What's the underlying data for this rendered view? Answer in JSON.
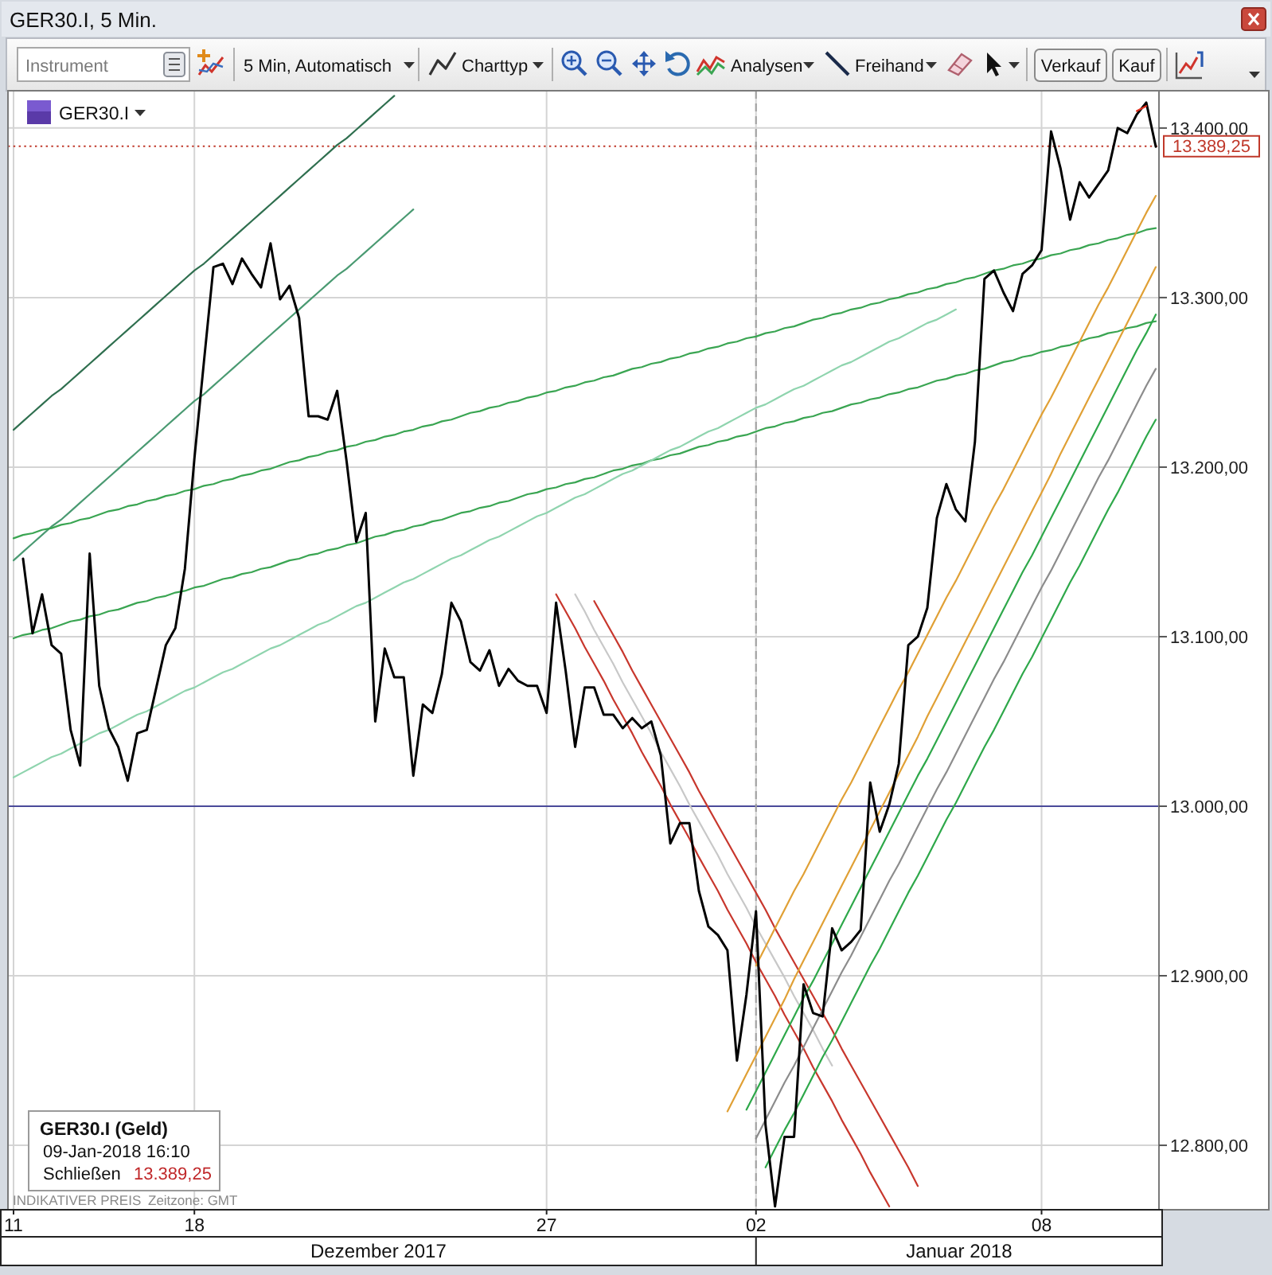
{
  "chart_data": {
    "type": "line",
    "title": "GER30.I, 5 Min.",
    "annotations": [
      "Instrument",
      "5 Min, Automatisch",
      "Charttyp",
      "Analysen",
      "Freihand",
      "Verkauf",
      "Kauf",
      "GER30.I",
      "GER30.I (Geld)",
      "09-Jan-2018 16:10",
      "Schließen",
      "13.389,25",
      "INDIKATIVER PREIS",
      "Zeitzone: GMT",
      "Dezember 2017",
      "Januar 2018"
    ],
    "categories": [
      "11",
      null,
      null,
      null,
      null,
      null,
      null,
      null,
      null,
      null,
      null,
      null,
      null,
      null,
      null,
      null,
      null,
      null,
      null,
      "18",
      null,
      null,
      null,
      null,
      null,
      null,
      null,
      null,
      null,
      null,
      null,
      null,
      null,
      null,
      null,
      null,
      null,
      null,
      null,
      null,
      null,
      null,
      null,
      null,
      null,
      null,
      null,
      null,
      null,
      null,
      null,
      null,
      null,
      null,
      null,
      null,
      "27",
      null,
      null,
      null,
      null,
      null,
      null,
      null,
      null,
      null,
      null,
      null,
      null,
      null,
      null,
      null,
      null,
      null,
      null,
      null,
      null,
      null,
      "02",
      null,
      null,
      null,
      null,
      null,
      null,
      null,
      null,
      null,
      null,
      null,
      null,
      null,
      null,
      null,
      null,
      null,
      null,
      null,
      null,
      null,
      null,
      null,
      null,
      null,
      null,
      null,
      null,
      null,
      "08",
      null,
      null,
      null,
      null,
      null,
      null,
      null,
      null,
      null,
      null,
      null,
      null
    ],
    "ylim": [
      12762,
      13422
    ],
    "yticks": [
      {
        "value": 12800,
        "label": "12.800,00"
      },
      {
        "value": 12900,
        "label": "12.900,00"
      },
      {
        "value": 13000,
        "label": "13.000,00"
      },
      {
        "value": 13100,
        "label": "13.100,00"
      },
      {
        "value": 13200,
        "label": "13.200,00"
      },
      {
        "value": 13300,
        "label": "13.300,00"
      },
      {
        "value": 13400,
        "label": "13.400,00"
      }
    ],
    "grid": true,
    "ref_lines": [
      {
        "axis": "y",
        "value": 13000,
        "color": "#4a4a9a"
      },
      {
        "axis": "y",
        "value": 13389.25,
        "label": "13.389,25",
        "color": "#c0392b",
        "line_style": "dotted"
      },
      {
        "axis": "x",
        "value": "02",
        "color": "#a0a0a0",
        "line_style": "dashed"
      }
    ],
    "series": [
      {
        "color": "#2f6f4f",
        "values": [
          13222,
          13227,
          13232,
          13237,
          13242,
          13246,
          13251,
          13256,
          13261,
          13266,
          13271,
          13276,
          13281,
          13286,
          13291,
          13296,
          13301,
          13306,
          13311,
          13316,
          13320,
          13325,
          13330,
          13335,
          13340,
          13345,
          13350,
          13355,
          13360,
          13365,
          13370,
          13375,
          13380,
          13385,
          13390,
          13394,
          13399,
          13404,
          13409,
          13414,
          13419,
          null,
          null,
          null,
          null,
          null,
          null,
          null,
          null,
          null,
          null,
          null,
          null,
          null,
          null,
          null,
          null,
          null,
          null,
          null,
          null,
          null,
          null,
          null,
          null,
          null,
          null,
          null,
          null,
          null,
          null,
          null,
          null,
          null,
          null,
          null,
          null,
          null,
          null,
          null,
          null,
          null,
          null,
          null,
          null,
          null,
          null,
          null,
          null,
          null,
          null,
          null,
          null,
          null,
          null,
          null,
          null,
          null,
          null,
          null,
          null,
          null,
          null,
          null,
          null,
          null,
          null,
          null,
          null,
          null,
          null,
          null,
          null,
          null,
          null,
          null,
          null,
          null,
          null,
          null,
          null
        ]
      },
      {
        "color": "#4a9a72",
        "values": [
          13145,
          13150,
          13155,
          13160,
          13165,
          13169,
          13174,
          13179,
          13184,
          13189,
          13194,
          13199,
          13204,
          13209,
          13214,
          13219,
          13224,
          13229,
          13234,
          13239,
          13243,
          13248,
          13253,
          13258,
          13263,
          13268,
          13273,
          13278,
          13283,
          13288,
          13293,
          13298,
          13303,
          13308,
          13313,
          13317,
          13322,
          13327,
          13332,
          13337,
          13342,
          13347,
          13352,
          null,
          null,
          null,
          null,
          null,
          null,
          null,
          null,
          null,
          null,
          null,
          null,
          null,
          null,
          null,
          null,
          null,
          null,
          null,
          null,
          null,
          null,
          null,
          null,
          null,
          null,
          null,
          null,
          null,
          null,
          null,
          null,
          null,
          null,
          null,
          null,
          null,
          null,
          null,
          null,
          null,
          null,
          null,
          null,
          null,
          null,
          null,
          null,
          null,
          null,
          null,
          null,
          null,
          null,
          null,
          null,
          null,
          null,
          null,
          null,
          null,
          null,
          null,
          null,
          null,
          null,
          null,
          null,
          null,
          null,
          null,
          null,
          null,
          null,
          null,
          null,
          null,
          null
        ]
      },
      {
        "color": "#3aa552",
        "values": [
          13158,
          13160,
          13161,
          13163,
          13164,
          13166,
          13167,
          13169,
          13170,
          13172,
          13174,
          13175,
          13177,
          13178,
          13180,
          13181,
          13183,
          13184,
          13186,
          13187,
          13189,
          13190,
          13192,
          13193,
          13195,
          13196,
          13198,
          13199,
          13201,
          13203,
          13204,
          13206,
          13207,
          13209,
          13210,
          13212,
          13213,
          13215,
          13216,
          13218,
          13219,
          13221,
          13222,
          13224,
          13225,
          13227,
          13228,
          13230,
          13232,
          13233,
          13235,
          13236,
          13238,
          13239,
          13241,
          13242,
          13244,
          13245,
          13247,
          13248,
          13250,
          13251,
          13253,
          13254,
          13256,
          13258,
          13259,
          13261,
          13262,
          13264,
          13265,
          13267,
          13268,
          13270,
          13271,
          13273,
          13274,
          13276,
          13277,
          13279,
          13280,
          13282,
          13283,
          13285,
          13287,
          13288,
          13290,
          13291,
          13293,
          13294,
          13296,
          13297,
          13299,
          13300,
          13302,
          13303,
          13305,
          13306,
          13308,
          13309,
          13311,
          13312,
          13314,
          13316,
          13317,
          13319,
          13320,
          13322,
          13323,
          13325,
          13326,
          13328,
          13329,
          13331,
          13332,
          13334,
          13335,
          13337,
          13338,
          13340,
          13341
        ]
      },
      {
        "color": "#3aa552",
        "values": [
          13099,
          13101,
          13102,
          13104,
          13105,
          13107,
          13109,
          13110,
          13112,
          13113,
          13115,
          13116,
          13118,
          13120,
          13121,
          13123,
          13124,
          13126,
          13127,
          13129,
          13130,
          13132,
          13134,
          13135,
          13137,
          13138,
          13140,
          13141,
          13143,
          13145,
          13146,
          13148,
          13149,
          13151,
          13152,
          13154,
          13155,
          13157,
          13159,
          13160,
          13162,
          13163,
          13165,
          13166,
          13168,
          13169,
          13171,
          13173,
          13174,
          13176,
          13177,
          13179,
          13180,
          13182,
          13184,
          13185,
          13187,
          13188,
          13190,
          13191,
          13193,
          13194,
          13196,
          13198,
          13199,
          13201,
          13202,
          13204,
          13205,
          13207,
          13208,
          13210,
          13212,
          13213,
          13215,
          13216,
          13218,
          13219,
          13221,
          13223,
          13224,
          13226,
          13227,
          13229,
          13230,
          13232,
          13233,
          13235,
          13237,
          13238,
          13240,
          13241,
          13243,
          13244,
          13246,
          13247,
          13249,
          13251,
          13252,
          13254,
          13255,
          13257,
          13258,
          13260,
          13262,
          13263,
          13265,
          13266,
          13268,
          13269,
          13271,
          13272,
          13274,
          13276,
          13277,
          13279,
          13280,
          13282,
          13283,
          13285,
          13286
        ]
      },
      {
        "color": "#8fd4ae",
        "values": [
          13017,
          13020,
          13023,
          13026,
          13029,
          13031,
          13034,
          13037,
          13040,
          13043,
          13045,
          13048,
          13051,
          13054,
          13056,
          13059,
          13062,
          13065,
          13068,
          13070,
          13073,
          13076,
          13079,
          13081,
          13084,
          13087,
          13090,
          13093,
          13095,
          13098,
          13101,
          13104,
          13107,
          13109,
          13112,
          13115,
          13118,
          13120,
          13123,
          13126,
          13129,
          13132,
          13134,
          13137,
          13140,
          13143,
          13146,
          13148,
          13151,
          13154,
          13157,
          13159,
          13162,
          13165,
          13168,
          13171,
          13173,
          13176,
          13179,
          13182,
          13184,
          13187,
          13190,
          13193,
          13196,
          13198,
          13201,
          13204,
          13207,
          13210,
          13212,
          13215,
          13218,
          13221,
          13223,
          13226,
          13229,
          13232,
          13235,
          13237,
          13240,
          13243,
          13246,
          13248,
          13251,
          13254,
          13257,
          13260,
          13262,
          13265,
          13268,
          13271,
          13274,
          13276,
          13279,
          13282,
          13285,
          13287,
          13290,
          13293,
          null,
          null,
          null,
          null,
          null,
          null,
          null,
          null,
          null,
          null,
          null,
          null,
          null,
          null,
          null,
          null,
          null,
          null,
          null,
          null,
          null
        ]
      },
      {
        "color": "#c8372d",
        "values": [
          null,
          null,
          null,
          null,
          null,
          null,
          null,
          null,
          null,
          null,
          null,
          null,
          null,
          null,
          null,
          null,
          null,
          null,
          null,
          null,
          null,
          null,
          null,
          null,
          null,
          null,
          null,
          null,
          null,
          null,
          null,
          null,
          null,
          null,
          null,
          null,
          null,
          null,
          null,
          null,
          null,
          null,
          null,
          null,
          null,
          null,
          null,
          null,
          null,
          null,
          null,
          null,
          null,
          null,
          null,
          null,
          null,
          13125,
          13115,
          13105,
          13094,
          13084,
          13074,
          13063,
          13053,
          13043,
          13032,
          13022,
          13012,
          13001,
          12991,
          12981,
          12970,
          12960,
          12950,
          12939,
          12929,
          12919,
          12908,
          12898,
          12888,
          12877,
          12867,
          12857,
          12846,
          12836,
          12826,
          12815,
          12805,
          12795,
          12784,
          12774,
          12764,
          null,
          null,
          null,
          null,
          null,
          null,
          null,
          null,
          null,
          null,
          null,
          null,
          null,
          null,
          null,
          null,
          null,
          null,
          null,
          null,
          null,
          null,
          null,
          null,
          null,
          null,
          null,
          null
        ]
      },
      {
        "color": "#c8c8c8",
        "values": [
          null,
          null,
          null,
          null,
          null,
          null,
          null,
          null,
          null,
          null,
          null,
          null,
          null,
          null,
          null,
          null,
          null,
          null,
          null,
          null,
          null,
          null,
          null,
          null,
          null,
          null,
          null,
          null,
          null,
          null,
          null,
          null,
          null,
          null,
          null,
          null,
          null,
          null,
          null,
          null,
          null,
          null,
          null,
          null,
          null,
          null,
          null,
          null,
          null,
          null,
          null,
          null,
          null,
          null,
          null,
          null,
          null,
          null,
          null,
          13125,
          13115,
          13104,
          13094,
          13084,
          13073,
          13063,
          13053,
          13043,
          13032,
          13022,
          13012,
          13001,
          12991,
          12981,
          12971,
          12960,
          12950,
          12940,
          12929,
          12919,
          12909,
          12899,
          12888,
          12878,
          12868,
          12857,
          12847,
          null,
          null,
          null,
          null,
          null,
          null,
          null,
          null,
          null,
          null,
          null,
          null,
          null,
          null,
          null,
          null,
          null,
          null,
          null,
          null,
          null,
          null,
          null,
          null,
          null,
          null,
          null,
          null,
          null,
          null,
          null,
          null,
          null,
          null
        ]
      },
      {
        "color": "#c8372d",
        "values": [
          null,
          null,
          null,
          null,
          null,
          null,
          null,
          null,
          null,
          null,
          null,
          null,
          null,
          null,
          null,
          null,
          null,
          null,
          null,
          null,
          null,
          null,
          null,
          null,
          null,
          null,
          null,
          null,
          null,
          null,
          null,
          null,
          null,
          null,
          null,
          null,
          null,
          null,
          null,
          null,
          null,
          null,
          null,
          null,
          null,
          null,
          null,
          null,
          null,
          null,
          null,
          null,
          null,
          null,
          null,
          null,
          null,
          null,
          null,
          null,
          null,
          13121,
          13111,
          13101,
          13091,
          13080,
          13070,
          13060,
          13050,
          13040,
          13030,
          13020,
          13009,
          12999,
          12989,
          12979,
          12969,
          12959,
          12949,
          12939,
          12928,
          12918,
          12908,
          12898,
          12888,
          12878,
          12868,
          12857,
          12847,
          12837,
          12827,
          12817,
          12807,
          12797,
          12787,
          12776,
          null,
          null,
          null,
          null,
          null,
          null,
          null,
          null,
          null,
          null,
          null,
          null,
          null,
          null,
          null,
          null,
          null,
          null,
          null,
          null,
          null,
          null,
          null,
          null,
          null
        ]
      },
      {
        "color": "#e0a035",
        "values": [
          null,
          null,
          null,
          null,
          null,
          null,
          null,
          null,
          null,
          null,
          null,
          null,
          null,
          null,
          null,
          null,
          null,
          null,
          null,
          null,
          null,
          null,
          null,
          null,
          null,
          null,
          null,
          null,
          null,
          null,
          null,
          null,
          null,
          null,
          null,
          null,
          null,
          null,
          null,
          null,
          null,
          null,
          null,
          null,
          null,
          null,
          null,
          null,
          null,
          null,
          null,
          null,
          null,
          null,
          null,
          null,
          null,
          null,
          null,
          null,
          null,
          null,
          null,
          null,
          null,
          null,
          null,
          null,
          null,
          null,
          null,
          null,
          null,
          null,
          null,
          null,
          null,
          null,
          12906,
          12917,
          12928,
          12939,
          12950,
          12960,
          12971,
          12982,
          12993,
          13004,
          13014,
          13025,
          13036,
          13047,
          13058,
          13069,
          13079,
          13090,
          13101,
          13112,
          13123,
          13133,
          13144,
          13155,
          13166,
          13177,
          13187,
          13198,
          13209,
          13220,
          13231,
          13241,
          13252,
          13263,
          13274,
          13285,
          13296,
          13306,
          13317,
          13328,
          13339,
          13350,
          13360
        ]
      },
      {
        "color": "#e0a035",
        "values": [
          null,
          null,
          null,
          null,
          null,
          null,
          null,
          null,
          null,
          null,
          null,
          null,
          null,
          null,
          null,
          null,
          null,
          null,
          null,
          null,
          null,
          null,
          null,
          null,
          null,
          null,
          null,
          null,
          null,
          null,
          null,
          null,
          null,
          null,
          null,
          null,
          null,
          null,
          null,
          null,
          null,
          null,
          null,
          null,
          null,
          null,
          null,
          null,
          null,
          null,
          null,
          null,
          null,
          null,
          null,
          null,
          null,
          null,
          null,
          null,
          null,
          null,
          null,
          null,
          null,
          null,
          null,
          null,
          null,
          null,
          null,
          null,
          null,
          null,
          null,
          12820,
          12831,
          12842,
          12853,
          12864,
          12875,
          12886,
          12898,
          12909,
          12920,
          12931,
          12942,
          12953,
          12964,
          12975,
          12986,
          12997,
          13008,
          13019,
          13030,
          13041,
          13053,
          13064,
          13075,
          13086,
          13097,
          13108,
          13119,
          13130,
          13141,
          13152,
          13163,
          13174,
          13185,
          13196,
          13208,
          13219,
          13230,
          13241,
          13252,
          13263,
          13274,
          13285,
          13296,
          13307,
          13318
        ]
      },
      {
        "color": "#2ea84a",
        "values": [
          null,
          null,
          null,
          null,
          null,
          null,
          null,
          null,
          null,
          null,
          null,
          null,
          null,
          null,
          null,
          null,
          null,
          null,
          null,
          null,
          null,
          null,
          null,
          null,
          null,
          null,
          null,
          null,
          null,
          null,
          null,
          null,
          null,
          null,
          null,
          null,
          null,
          null,
          null,
          null,
          null,
          null,
          null,
          null,
          null,
          null,
          null,
          null,
          null,
          null,
          null,
          null,
          null,
          null,
          null,
          null,
          null,
          null,
          null,
          null,
          null,
          null,
          null,
          null,
          null,
          null,
          null,
          null,
          null,
          null,
          null,
          null,
          null,
          null,
          null,
          null,
          null,
          12821,
          12832,
          12843,
          12854,
          12865,
          12876,
          12887,
          12897,
          12908,
          12919,
          12930,
          12941,
          12952,
          12963,
          12974,
          12985,
          12996,
          13007,
          13018,
          13028,
          13039,
          13050,
          13061,
          13072,
          13083,
          13094,
          13105,
          13116,
          13127,
          13138,
          13148,
          13159,
          13170,
          13181,
          13192,
          13203,
          13214,
          13225,
          13236,
          13247,
          13258,
          13269,
          13279,
          13290
        ]
      },
      {
        "color": "#8c8c8c",
        "values": [
          null,
          null,
          null,
          null,
          null,
          null,
          null,
          null,
          null,
          null,
          null,
          null,
          null,
          null,
          null,
          null,
          null,
          null,
          null,
          null,
          null,
          null,
          null,
          null,
          null,
          null,
          null,
          null,
          null,
          null,
          null,
          null,
          null,
          null,
          null,
          null,
          null,
          null,
          null,
          null,
          null,
          null,
          null,
          null,
          null,
          null,
          null,
          null,
          null,
          null,
          null,
          null,
          null,
          null,
          null,
          null,
          null,
          null,
          null,
          null,
          null,
          null,
          null,
          null,
          null,
          null,
          null,
          null,
          null,
          null,
          null,
          null,
          null,
          null,
          null,
          null,
          null,
          null,
          12804,
          12815,
          12826,
          12837,
          12847,
          12858,
          12869,
          12880,
          12891,
          12902,
          12912,
          12923,
          12934,
          12945,
          12956,
          12966,
          12977,
          12988,
          12999,
          13010,
          13020,
          13031,
          13042,
          13053,
          13064,
          13075,
          13085,
          13096,
          13107,
          13118,
          13129,
          13139,
          13150,
          13161,
          13172,
          13183,
          13194,
          13204,
          13215,
          13226,
          13237,
          13248,
          13258
        ]
      },
      {
        "color": "#2ea84a",
        "values": [
          null,
          null,
          null,
          null,
          null,
          null,
          null,
          null,
          null,
          null,
          null,
          null,
          null,
          null,
          null,
          null,
          null,
          null,
          null,
          null,
          null,
          null,
          null,
          null,
          null,
          null,
          null,
          null,
          null,
          null,
          null,
          null,
          null,
          null,
          null,
          null,
          null,
          null,
          null,
          null,
          null,
          null,
          null,
          null,
          null,
          null,
          null,
          null,
          null,
          null,
          null,
          null,
          null,
          null,
          null,
          null,
          null,
          null,
          null,
          null,
          null,
          null,
          null,
          null,
          null,
          null,
          null,
          null,
          null,
          null,
          null,
          null,
          null,
          null,
          null,
          null,
          null,
          null,
          null,
          12787,
          12798,
          12809,
          12819,
          12830,
          12841,
          12852,
          12862,
          12873,
          12884,
          12895,
          12906,
          12916,
          12927,
          12938,
          12949,
          12959,
          12970,
          12981,
          12992,
          13002,
          13013,
          13024,
          13035,
          13045,
          13056,
          13067,
          13078,
          13088,
          13099,
          13110,
          13121,
          13132,
          13142,
          13153,
          13164,
          13175,
          13185,
          13196,
          13207,
          13218,
          13228
        ]
      },
      {
        "color": "#000000",
        "values": [
          null,
          13146,
          13102,
          13125,
          13095,
          13090,
          13045,
          13024,
          13149,
          13071,
          13046,
          13035,
          13015,
          13043,
          13045,
          13070,
          13095,
          13105,
          13140,
          13205,
          13262,
          13318,
          13320,
          13308,
          13323,
          13314,
          13306,
          13332,
          13299,
          13307,
          13288,
          13230,
          13230,
          13228,
          13245,
          13203,
          13156,
          13173,
          13050,
          13093,
          13076,
          13076,
          13018,
          13060,
          13055,
          13078,
          13120,
          13109,
          13085,
          13080,
          13092,
          13071,
          13081,
          13074,
          13071,
          13071,
          13055,
          13120,
          13080,
          13035,
          13070,
          13070,
          13054,
          13054,
          13046,
          13052,
          13046,
          13050,
          13030,
          12978,
          12990,
          12990,
          12950,
          12929,
          12924,
          12915,
          12850,
          12889,
          12938,
          12812,
          12764,
          12805,
          12805,
          12895,
          12878,
          12876,
          12928,
          12915,
          12920,
          12927,
          13014,
          12985,
          13001,
          13025,
          13095,
          13100,
          13117,
          13170,
          13190,
          13175,
          13168,
          13215,
          13311,
          13316,
          13303,
          13292,
          13314,
          13319,
          13328,
          13398,
          13376,
          13346,
          13368,
          13359,
          13367,
          13375,
          13400,
          13397,
          13408,
          13415,
          13389
        ]
      },
      {
        "color": "#e0301e",
        "values": [
          null,
          null,
          null,
          null,
          null,
          null,
          null,
          null,
          null,
          null,
          null,
          null,
          null,
          null,
          null,
          null,
          null,
          null,
          null,
          null,
          null,
          null,
          null,
          null,
          null,
          null,
          null,
          null,
          null,
          null,
          null,
          null,
          null,
          null,
          null,
          null,
          null,
          null,
          null,
          null,
          null,
          null,
          null,
          null,
          null,
          null,
          null,
          null,
          null,
          null,
          null,
          null,
          null,
          null,
          null,
          null,
          null,
          null,
          null,
          null,
          null,
          null,
          null,
          null,
          null,
          null,
          null,
          null,
          null,
          null,
          null,
          null,
          null,
          null,
          null,
          null,
          null,
          null,
          null,
          null,
          null,
          null,
          null,
          null,
          null,
          null,
          null,
          null,
          null,
          null,
          null,
          null,
          null,
          null,
          null,
          null,
          null,
          null,
          null,
          null,
          null,
          null,
          null,
          null,
          null,
          null,
          null,
          null,
          null,
          null,
          null,
          null,
          null,
          null,
          null,
          null,
          null,
          null,
          13410,
          13413,
          null
        ]
      }
    ]
  }
}
